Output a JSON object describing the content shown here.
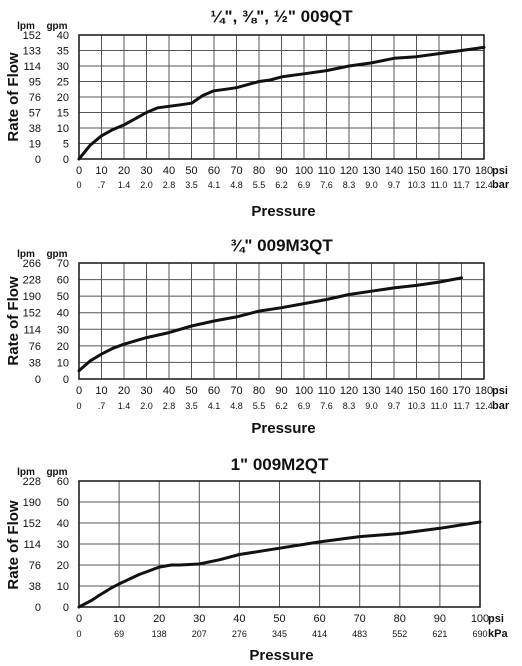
{
  "chart_data": [
    {
      "type": "line",
      "title": "¼\", ⅜\", ½\" 009QT",
      "xlabel": "Pressure",
      "ylabel": "Rate of Flow",
      "units": {
        "y_primary": "gpm",
        "y_secondary": "lpm",
        "x_primary": "psi",
        "x_secondary": "bar"
      },
      "xlim": [
        0,
        180
      ],
      "ylim": [
        0,
        40
      ],
      "x_ticks": [
        0,
        10,
        20,
        30,
        40,
        50,
        60,
        70,
        80,
        90,
        100,
        110,
        120,
        130,
        140,
        150,
        160,
        170,
        180
      ],
      "x_ticks_secondary": [
        "0",
        ".7",
        "1.4",
        "2.0",
        "2.8",
        "3.5",
        "4.1",
        "4.8",
        "5.5",
        "6.2",
        "6.9",
        "7.6",
        "8.3",
        "9.0",
        "9.7",
        "10.3",
        "11.0",
        "11.7",
        "12.4"
      ],
      "y_ticks": [
        0,
        5,
        10,
        15,
        20,
        25,
        30,
        35,
        40
      ],
      "y_ticks_secondary": [
        "0",
        "19",
        "38",
        "57",
        "76",
        "95",
        "114",
        "133",
        "152"
      ],
      "grid": true,
      "series": [
        {
          "x": [
            0,
            5,
            10,
            15,
            20,
            25,
            30,
            35,
            40,
            45,
            50,
            55,
            60,
            65,
            70,
            75,
            80,
            85,
            90,
            95,
            100,
            110,
            120,
            130,
            140,
            150,
            160,
            170,
            180
          ],
          "values": [
            0,
            4.5,
            7.5,
            9.5,
            11,
            13,
            15,
            16.5,
            17,
            17.5,
            18,
            20.5,
            22,
            22.5,
            23,
            24,
            25,
            25.5,
            26.5,
            27,
            27.5,
            28.5,
            30,
            31,
            32.5,
            33,
            34,
            35,
            36
          ]
        }
      ]
    },
    {
      "type": "line",
      "title": "¾\" 009M3QT",
      "xlabel": "Pressure",
      "ylabel": "Rate of Flow",
      "units": {
        "y_primary": "gpm",
        "y_secondary": "lpm",
        "x_primary": "psi",
        "x_secondary": "bar"
      },
      "xlim": [
        0,
        180
      ],
      "ylim": [
        0,
        70
      ],
      "x_ticks": [
        0,
        10,
        20,
        30,
        40,
        50,
        60,
        70,
        80,
        90,
        100,
        110,
        120,
        130,
        140,
        150,
        160,
        170,
        180
      ],
      "x_ticks_secondary": [
        "0",
        ".7",
        "1.4",
        "2.0",
        "2.8",
        "3.5",
        "4.1",
        "4.8",
        "5.5",
        "6.2",
        "6.9",
        "7.6",
        "8.3",
        "9.0",
        "9.7",
        "10.3",
        "11.0",
        "11.7",
        "12.4"
      ],
      "y_ticks": [
        0,
        10,
        20,
        30,
        40,
        50,
        60,
        70
      ],
      "y_ticks_secondary": [
        "0",
        "38",
        "76",
        "114",
        "152",
        "190",
        "228",
        "266"
      ],
      "grid": true,
      "series": [
        {
          "x": [
            0,
            5,
            10,
            15,
            20,
            30,
            40,
            50,
            60,
            70,
            80,
            90,
            100,
            110,
            120,
            130,
            140,
            150,
            160,
            170
          ],
          "values": [
            5,
            11,
            15,
            18.5,
            21,
            25,
            28,
            32,
            35,
            37.5,
            41,
            43,
            45.5,
            48,
            51,
            53,
            55,
            56.5,
            58.5,
            61
          ]
        }
      ]
    },
    {
      "type": "line",
      "title": "1\" 009M2QT",
      "xlabel": "Pressure",
      "ylabel": "Rate of Flow",
      "units": {
        "y_primary": "gpm",
        "y_secondary": "lpm",
        "x_primary": "psi",
        "x_secondary": "kPa"
      },
      "xlim": [
        0,
        100
      ],
      "ylim": [
        0,
        60
      ],
      "x_ticks": [
        0,
        10,
        20,
        30,
        40,
        50,
        60,
        70,
        80,
        90,
        100
      ],
      "x_ticks_secondary": [
        "0",
        "69",
        "138",
        "207",
        "276",
        "345",
        "414",
        "483",
        "552",
        "621",
        "690"
      ],
      "y_ticks": [
        0,
        10,
        20,
        30,
        40,
        50,
        60
      ],
      "y_ticks_secondary": [
        "0",
        "38",
        "76",
        "114",
        "152",
        "190",
        "228"
      ],
      "grid": true,
      "series": [
        {
          "x": [
            0,
            3,
            5,
            8,
            10,
            15,
            20,
            23,
            25,
            30,
            35,
            40,
            50,
            60,
            70,
            80,
            90,
            100
          ],
          "values": [
            0,
            3,
            5.5,
            9,
            11,
            15.5,
            19,
            20,
            20,
            20.5,
            22.5,
            25,
            28,
            31,
            33.5,
            35,
            37.5,
            40.5
          ]
        }
      ]
    }
  ]
}
